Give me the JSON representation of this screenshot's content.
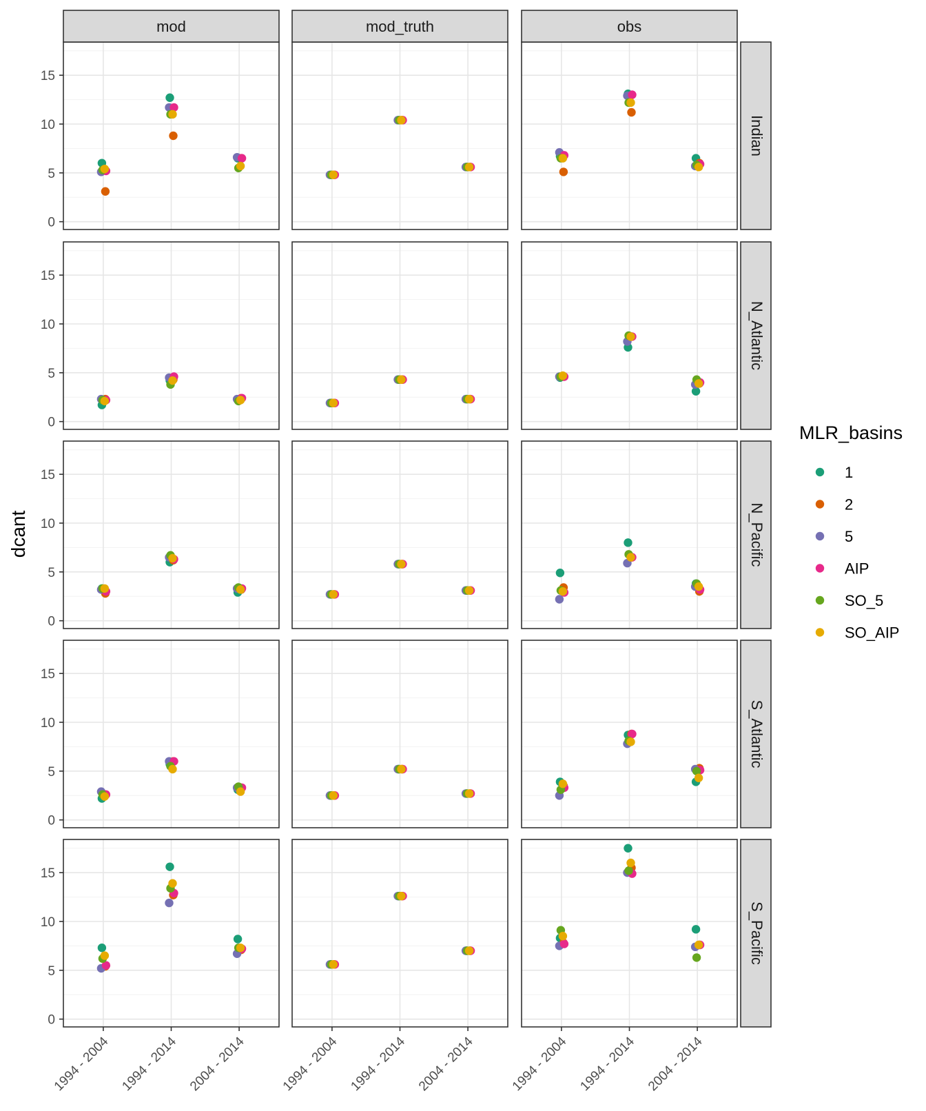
{
  "chart_data": {
    "type": "scatter",
    "ylabel": "dcant",
    "xlabel": "",
    "ylim": [
      -0.8,
      18.4
    ],
    "yticks": [
      0,
      5,
      10,
      15
    ],
    "grid": true,
    "facet_cols": [
      "mod",
      "mod_truth",
      "obs"
    ],
    "facet_rows": [
      "Indian",
      "N_Atlantic",
      "N_Pacific",
      "S_Atlantic",
      "S_Pacific"
    ],
    "categories": [
      "1994 - 2004",
      "1994 - 2014",
      "2004 - 2014"
    ],
    "legend": {
      "title": "MLR_basins",
      "position": "right",
      "entries": [
        {
          "name": "1",
          "color": "#1b9e77"
        },
        {
          "name": "2",
          "color": "#d95f02"
        },
        {
          "name": "5",
          "color": "#7570b3"
        },
        {
          "name": "AIP",
          "color": "#e7298a"
        },
        {
          "name": "SO_5",
          "color": "#66a61e"
        },
        {
          "name": "SO_AIP",
          "color": "#e6ab02"
        }
      ]
    },
    "panels": [
      {
        "row": "Indian",
        "col": "mod",
        "values": {
          "1": [
            6.0,
            12.7,
            6.5
          ],
          "2": [
            3.1,
            8.8,
            6.5
          ],
          "5": [
            5.1,
            11.7,
            6.6
          ],
          "AIP": [
            5.2,
            11.7,
            6.5
          ],
          "SO_5": [
            5.3,
            11.0,
            5.5
          ],
          "SO_AIP": [
            5.4,
            11.0,
            5.7
          ]
        }
      },
      {
        "row": "Indian",
        "col": "mod_truth",
        "values": {
          "1": [
            4.8,
            10.4,
            5.6
          ],
          "2": [
            4.8,
            10.4,
            5.6
          ],
          "5": [
            4.8,
            10.4,
            5.6
          ],
          "AIP": [
            4.8,
            10.4,
            5.6
          ],
          "SO_5": [
            4.8,
            10.4,
            5.6
          ],
          "SO_AIP": [
            4.8,
            10.4,
            5.6
          ]
        }
      },
      {
        "row": "Indian",
        "col": "obs",
        "values": {
          "1": [
            6.7,
            13.1,
            6.5
          ],
          "2": [
            5.1,
            11.2,
            6.0
          ],
          "5": [
            7.1,
            12.9,
            5.7
          ],
          "AIP": [
            6.8,
            13.0,
            5.9
          ],
          "SO_5": [
            6.5,
            12.2,
            5.8
          ],
          "SO_AIP": [
            6.5,
            12.2,
            5.6
          ]
        }
      },
      {
        "row": "N_Atlantic",
        "col": "mod",
        "values": {
          "1": [
            1.7,
            4.2,
            2.2
          ],
          "2": [
            2.3,
            4.3,
            2.4
          ],
          "5": [
            2.3,
            4.5,
            2.3
          ],
          "AIP": [
            2.2,
            4.6,
            2.4
          ],
          "SO_5": [
            2.2,
            3.8,
            2.1
          ],
          "SO_AIP": [
            2.1,
            4.2,
            2.2
          ]
        }
      },
      {
        "row": "N_Atlantic",
        "col": "mod_truth",
        "values": {
          "1": [
            1.9,
            4.3,
            2.3
          ],
          "2": [
            1.9,
            4.3,
            2.3
          ],
          "5": [
            1.9,
            4.3,
            2.3
          ],
          "AIP": [
            1.9,
            4.3,
            2.3
          ],
          "SO_5": [
            1.9,
            4.3,
            2.3
          ],
          "SO_AIP": [
            1.9,
            4.3,
            2.3
          ]
        }
      },
      {
        "row": "N_Atlantic",
        "col": "obs",
        "values": {
          "1": [
            4.5,
            7.6,
            3.1
          ],
          "2": [
            4.6,
            8.7,
            3.9
          ],
          "5": [
            4.6,
            8.2,
            3.8
          ],
          "AIP": [
            4.6,
            8.7,
            4.0
          ],
          "SO_5": [
            4.6,
            8.8,
            4.3
          ],
          "SO_AIP": [
            4.7,
            8.7,
            3.9
          ]
        }
      },
      {
        "row": "N_Pacific",
        "col": "mod",
        "values": {
          "1": [
            3.3,
            6.0,
            2.9
          ],
          "2": [
            2.8,
            6.2,
            3.2
          ],
          "5": [
            3.2,
            6.5,
            3.3
          ],
          "AIP": [
            3.0,
            6.3,
            3.3
          ],
          "SO_5": [
            3.3,
            6.7,
            3.4
          ],
          "SO_AIP": [
            3.3,
            6.4,
            3.2
          ]
        }
      },
      {
        "row": "N_Pacific",
        "col": "mod_truth",
        "values": {
          "1": [
            2.7,
            5.8,
            3.1
          ],
          "2": [
            2.7,
            5.8,
            3.1
          ],
          "5": [
            2.7,
            5.8,
            3.1
          ],
          "AIP": [
            2.7,
            5.8,
            3.1
          ],
          "SO_5": [
            2.7,
            5.8,
            3.1
          ],
          "SO_AIP": [
            2.7,
            5.8,
            3.1
          ]
        }
      },
      {
        "row": "N_Pacific",
        "col": "obs",
        "values": {
          "1": [
            4.9,
            8.0,
            3.8
          ],
          "2": [
            3.4,
            6.5,
            3.0
          ],
          "5": [
            2.2,
            5.9,
            3.5
          ],
          "AIP": [
            2.9,
            6.5,
            3.2
          ],
          "SO_5": [
            3.1,
            6.8,
            3.8
          ],
          "SO_AIP": [
            3.0,
            6.5,
            3.5
          ]
        }
      },
      {
        "row": "S_Atlantic",
        "col": "mod",
        "values": {
          "1": [
            2.2,
            5.7,
            3.1
          ],
          "2": [
            2.6,
            6.0,
            3.3
          ],
          "5": [
            2.9,
            6.0,
            3.3
          ],
          "AIP": [
            2.6,
            6.0,
            3.3
          ],
          "SO_5": [
            2.6,
            5.5,
            3.4
          ],
          "SO_AIP": [
            2.4,
            5.2,
            2.9
          ]
        }
      },
      {
        "row": "S_Atlantic",
        "col": "mod_truth",
        "values": {
          "1": [
            2.5,
            5.2,
            2.7
          ],
          "2": [
            2.5,
            5.2,
            2.7
          ],
          "5": [
            2.5,
            5.2,
            2.7
          ],
          "AIP": [
            2.5,
            5.2,
            2.7
          ],
          "SO_5": [
            2.5,
            5.2,
            2.7
          ],
          "SO_AIP": [
            2.5,
            5.2,
            2.7
          ]
        }
      },
      {
        "row": "S_Atlantic",
        "col": "obs",
        "values": {
          "1": [
            3.9,
            8.7,
            3.9
          ],
          "2": [
            3.5,
            8.8,
            5.3
          ],
          "5": [
            2.5,
            7.8,
            5.2
          ],
          "AIP": [
            3.3,
            8.8,
            5.1
          ],
          "SO_5": [
            3.1,
            8.1,
            5.0
          ],
          "SO_AIP": [
            3.7,
            8.0,
            4.3
          ]
        }
      },
      {
        "row": "S_Pacific",
        "col": "mod",
        "values": {
          "1": [
            7.3,
            15.6,
            8.2
          ],
          "2": [
            5.4,
            12.7,
            7.1
          ],
          "5": [
            5.2,
            11.9,
            6.7
          ],
          "AIP": [
            5.5,
            12.9,
            7.2
          ],
          "SO_5": [
            6.2,
            13.4,
            7.3
          ],
          "SO_AIP": [
            6.5,
            13.9,
            7.3
          ]
        }
      },
      {
        "row": "S_Pacific",
        "col": "mod_truth",
        "values": {
          "1": [
            5.6,
            12.6,
            7.0
          ],
          "2": [
            5.6,
            12.6,
            7.0
          ],
          "5": [
            5.6,
            12.6,
            7.0
          ],
          "AIP": [
            5.6,
            12.6,
            7.0
          ],
          "SO_5": [
            5.6,
            12.6,
            7.0
          ],
          "SO_AIP": [
            5.6,
            12.6,
            7.0
          ]
        }
      },
      {
        "row": "S_Pacific",
        "col": "obs",
        "values": {
          "1": [
            8.3,
            17.5,
            9.2
          ],
          "2": [
            7.8,
            15.5,
            7.6
          ],
          "5": [
            7.5,
            15.0,
            7.4
          ],
          "AIP": [
            7.7,
            14.9,
            7.6
          ],
          "SO_5": [
            9.1,
            15.2,
            6.3
          ],
          "SO_AIP": [
            8.5,
            16.0,
            7.6
          ]
        }
      }
    ]
  }
}
